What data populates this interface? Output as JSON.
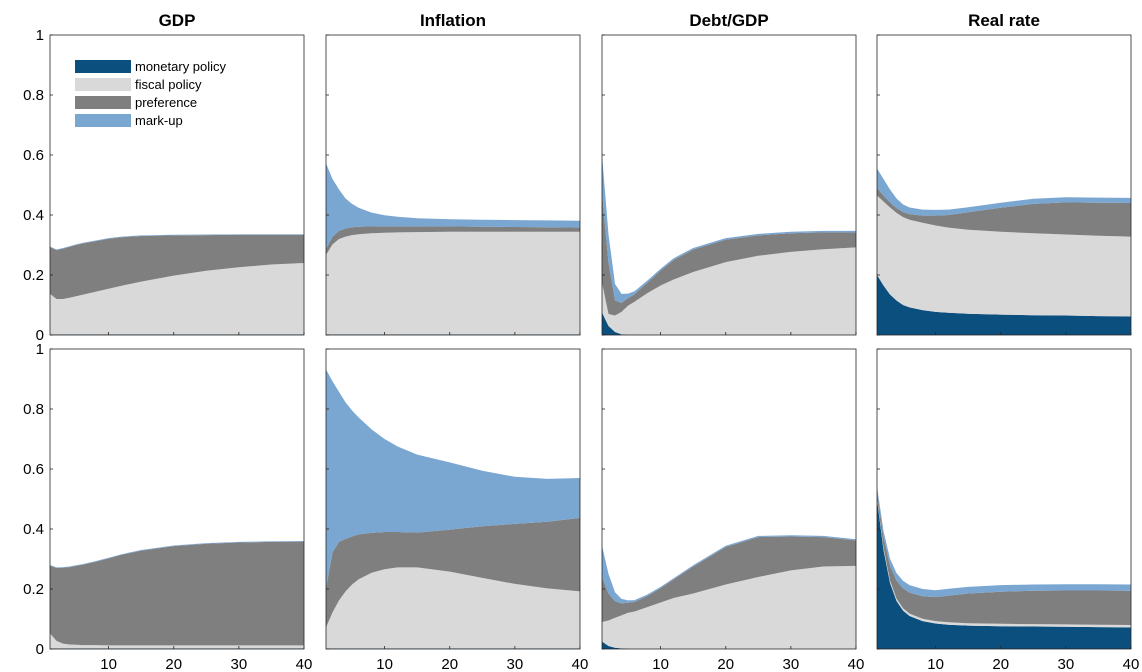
{
  "chart_data": {
    "type": "area",
    "stacked": true,
    "layout": {
      "rows": 2,
      "cols": 4
    },
    "x": [
      1,
      2,
      3,
      4,
      5,
      6,
      8,
      10,
      12,
      15,
      20,
      25,
      30,
      35,
      40
    ],
    "xlim": [
      1,
      40
    ],
    "ylim": [
      0,
      1
    ],
    "xticks": [
      "10",
      "20",
      "30",
      "40"
    ],
    "yticks": [
      "0",
      "0.2",
      "0.4",
      "0.6",
      "0.8",
      "1"
    ],
    "column_titles": [
      "GDP",
      "Inflation",
      "Debt/GDP",
      "Real rate"
    ],
    "legend": {
      "placement": "top-left of first panel",
      "entries": [
        {
          "name": "monetary policy",
          "color": "#0b4f7e"
        },
        {
          "name": "fiscal policy",
          "color": "#d9d9d9"
        },
        {
          "name": "preference",
          "color": "#7f7f7f"
        },
        {
          "name": "mark-up",
          "color": "#7aa6d2"
        }
      ]
    },
    "series_order": [
      "monetary policy",
      "fiscal policy",
      "preference",
      "mark-up"
    ],
    "panels": [
      {
        "row": 1,
        "title": "GDP",
        "series": [
          {
            "name": "monetary policy",
            "values": [
              0.002,
              0.002,
              0.002,
              0.002,
              0.002,
              0.002,
              0.002,
              0.002,
              0.002,
              0.002,
              0.002,
              0.002,
              0.002,
              0.002,
              0.002
            ]
          },
          {
            "name": "fiscal policy",
            "values": [
              0.135,
              0.118,
              0.118,
              0.122,
              0.127,
              0.132,
              0.142,
              0.152,
              0.162,
              0.176,
              0.196,
              0.212,
              0.224,
              0.233,
              0.238
            ]
          },
          {
            "name": "preference",
            "values": [
              0.156,
              0.163,
              0.168,
              0.17,
              0.171,
              0.171,
              0.169,
              0.167,
              0.162,
              0.152,
              0.134,
              0.119,
              0.108,
              0.099,
              0.094
            ]
          },
          {
            "name": "mark-up",
            "values": [
              0.002,
              0.002,
              0.002,
              0.002,
              0.002,
              0.002,
              0.002,
              0.002,
              0.002,
              0.002,
              0.002,
              0.002,
              0.002,
              0.002,
              0.002
            ]
          }
        ]
      },
      {
        "row": 1,
        "title": "Inflation",
        "series": [
          {
            "name": "monetary policy",
            "values": [
              0.002,
              0.002,
              0.002,
              0.002,
              0.002,
              0.002,
              0.002,
              0.002,
              0.002,
              0.002,
              0.002,
              0.002,
              0.002,
              0.002,
              0.002
            ]
          },
          {
            "name": "fiscal policy",
            "values": [
              0.265,
              0.3,
              0.318,
              0.326,
              0.331,
              0.334,
              0.337,
              0.339,
              0.34,
              0.341,
              0.342,
              0.342,
              0.342,
              0.342,
              0.342
            ]
          },
          {
            "name": "preference",
            "values": [
              0.02,
              0.025,
              0.027,
              0.027,
              0.026,
              0.025,
              0.023,
              0.021,
              0.02,
              0.019,
              0.018,
              0.017,
              0.016,
              0.015,
              0.014
            ]
          },
          {
            "name": "mark-up",
            "values": [
              0.285,
              0.193,
              0.138,
              0.1,
              0.078,
              0.063,
              0.046,
              0.037,
              0.032,
              0.027,
              0.024,
              0.023,
              0.023,
              0.023,
              0.023
            ]
          }
        ]
      },
      {
        "row": 1,
        "title": "Debt/GDP",
        "series": [
          {
            "name": "monetary policy",
            "values": [
              0.075,
              0.03,
              0.01,
              0.002,
              0.001,
              0.001,
              0,
              0,
              0,
              0,
              0,
              0,
              0,
              0,
              0
            ]
          },
          {
            "name": "fiscal policy",
            "values": [
              0.1,
              0.04,
              0.055,
              0.075,
              0.097,
              0.11,
              0.14,
              0.165,
              0.185,
              0.21,
              0.243,
              0.264,
              0.277,
              0.286,
              0.292
            ]
          },
          {
            "name": "preference",
            "values": [
              0.3,
              0.17,
              0.05,
              0.03,
              0.025,
              0.025,
              0.035,
              0.05,
              0.065,
              0.075,
              0.075,
              0.068,
              0.062,
              0.056,
              0.05
            ]
          },
          {
            "name": "mark-up",
            "values": [
              0.125,
              0.095,
              0.055,
              0.03,
              0.015,
              0.01,
              0.007,
              0.006,
              0.006,
              0.005,
              0.005,
              0.005,
              0.005,
              0.005,
              0.005
            ]
          }
        ]
      },
      {
        "row": 1,
        "title": "Real rate",
        "series": [
          {
            "name": "monetary policy",
            "values": [
              0.2,
              0.165,
              0.135,
              0.115,
              0.1,
              0.092,
              0.083,
              0.077,
              0.074,
              0.071,
              0.068,
              0.066,
              0.065,
              0.063,
              0.062
            ]
          },
          {
            "name": "fiscal policy",
            "values": [
              0.265,
              0.28,
              0.29,
              0.292,
              0.293,
              0.292,
              0.291,
              0.288,
              0.284,
              0.28,
              0.276,
              0.273,
              0.27,
              0.268,
              0.266
            ]
          },
          {
            "name": "preference",
            "values": [
              0.025,
              0.02,
              0.017,
              0.016,
              0.017,
              0.019,
              0.024,
              0.033,
              0.042,
              0.058,
              0.08,
              0.098,
              0.107,
              0.11,
              0.112
            ]
          },
          {
            "name": "mark-up",
            "values": [
              0.065,
              0.055,
              0.043,
              0.032,
              0.025,
              0.022,
              0.02,
              0.019,
              0.018,
              0.017,
              0.017,
              0.017,
              0.017,
              0.017,
              0.017
            ]
          }
        ]
      },
      {
        "row": 2,
        "title": "GDP",
        "series": [
          {
            "name": "monetary policy",
            "values": [
              0.002,
              0.002,
              0.002,
              0.002,
              0.002,
              0.002,
              0.002,
              0.002,
              0.002,
              0.002,
              0.002,
              0.002,
              0.002,
              0.002,
              0.002
            ]
          },
          {
            "name": "fiscal policy",
            "values": [
              0.05,
              0.025,
              0.016,
              0.013,
              0.012,
              0.011,
              0.011,
              0.01,
              0.01,
              0.01,
              0.01,
              0.01,
              0.01,
              0.01,
              0.01
            ]
          },
          {
            "name": "preference",
            "values": [
              0.226,
              0.243,
              0.253,
              0.258,
              0.263,
              0.268,
              0.278,
              0.29,
              0.302,
              0.316,
              0.331,
              0.339,
              0.343,
              0.345,
              0.346
            ]
          },
          {
            "name": "mark-up",
            "values": [
              0.002,
              0.002,
              0.002,
              0.002,
              0.002,
              0.002,
              0.002,
              0.002,
              0.002,
              0.002,
              0.002,
              0.002,
              0.002,
              0.002,
              0.002
            ]
          }
        ]
      },
      {
        "row": 2,
        "title": "Inflation",
        "series": [
          {
            "name": "monetary policy",
            "values": [
              0.002,
              0.002,
              0.002,
              0.002,
              0.002,
              0.002,
              0.002,
              0.002,
              0.002,
              0.002,
              0.002,
              0.002,
              0.002,
              0.002,
              0.002
            ]
          },
          {
            "name": "fiscal policy",
            "values": [
              0.07,
              0.12,
              0.16,
              0.19,
              0.213,
              0.23,
              0.252,
              0.264,
              0.27,
              0.27,
              0.256,
              0.235,
              0.215,
              0.2,
              0.19
            ]
          },
          {
            "name": "preference",
            "values": [
              0.13,
              0.2,
              0.195,
              0.175,
              0.16,
              0.15,
              0.133,
              0.124,
              0.118,
              0.116,
              0.14,
              0.172,
              0.2,
              0.222,
              0.245
            ]
          },
          {
            "name": "mark-up",
            "values": [
              0.73,
              0.57,
              0.5,
              0.455,
              0.42,
              0.39,
              0.345,
              0.31,
              0.285,
              0.26,
              0.224,
              0.185,
              0.157,
              0.143,
              0.133
            ]
          }
        ]
      },
      {
        "row": 2,
        "title": "Debt/GDP",
        "series": [
          {
            "name": "monetary policy",
            "values": [
              0.025,
              0.01,
              0.004,
              0.002,
              0.001,
              0,
              0,
              0,
              0,
              0,
              0,
              0,
              0,
              0,
              0
            ]
          },
          {
            "name": "fiscal policy",
            "values": [
              0.065,
              0.085,
              0.1,
              0.11,
              0.12,
              0.125,
              0.14,
              0.155,
              0.17,
              0.185,
              0.215,
              0.24,
              0.262,
              0.275,
              0.277
            ]
          },
          {
            "name": "preference",
            "values": [
              0.15,
              0.09,
              0.055,
              0.04,
              0.033,
              0.032,
              0.037,
              0.048,
              0.062,
              0.09,
              0.125,
              0.133,
              0.113,
              0.098,
              0.085
            ]
          },
          {
            "name": "mark-up",
            "values": [
              0.105,
              0.065,
              0.03,
              0.015,
              0.008,
              0.006,
              0.005,
              0.004,
              0.004,
              0.004,
              0.004,
              0.004,
              0.004,
              0.004,
              0.004
            ]
          }
        ]
      },
      {
        "row": 2,
        "title": "Real rate",
        "series": [
          {
            "name": "monetary policy",
            "values": [
              0.5,
              0.33,
              0.22,
              0.16,
              0.128,
              0.11,
              0.093,
              0.085,
              0.081,
              0.078,
              0.076,
              0.075,
              0.074,
              0.073,
              0.072
            ]
          },
          {
            "name": "fiscal policy",
            "values": [
              0.008,
              0.008,
              0.008,
              0.008,
              0.008,
              0.008,
              0.008,
              0.008,
              0.008,
              0.008,
              0.008,
              0.008,
              0.008,
              0.008,
              0.008
            ]
          },
          {
            "name": "preference",
            "values": [
              0.02,
              0.035,
              0.05,
              0.06,
              0.066,
              0.07,
              0.075,
              0.08,
              0.089,
              0.099,
              0.107,
              0.111,
              0.113,
              0.114,
              0.114
            ]
          },
          {
            "name": "mark-up",
            "values": [
              0.015,
              0.02,
              0.023,
              0.025,
              0.025,
              0.025,
              0.024,
              0.023,
              0.023,
              0.022,
              0.022,
              0.021,
              0.021,
              0.021,
              0.021
            ]
          }
        ]
      }
    ]
  }
}
